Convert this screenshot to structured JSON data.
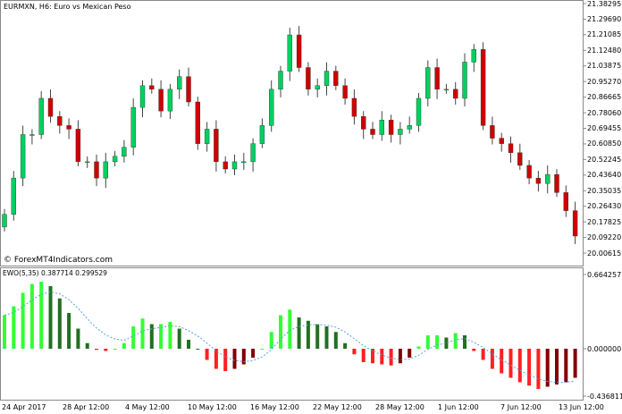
{
  "header": {
    "title": "EURMXN, H6:  Euro vs Mexican Peso",
    "watermark": "© ForexMT4Indicators.com"
  },
  "colors": {
    "bull": "#00d060",
    "bear": "#d00000",
    "hist_up": "#33ff33",
    "hist_down": "#207020",
    "hist_neg_down": "#ff2020",
    "hist_neg_up": "#800000",
    "signal": "#5aa0e0"
  },
  "chart_data": [
    {
      "type": "candlestick",
      "title": "EURMXN, H6:  Euro vs Mexican Peso",
      "ylim": [
        20.00615,
        21.38295
      ],
      "yticks": [
        "21.38295",
        "21.29690",
        "21.21085",
        "21.12480",
        "21.03875",
        "20.95270",
        "20.86665",
        "20.78060",
        "20.69455",
        "20.60850",
        "20.52245",
        "20.43640",
        "20.35035",
        "20.26430",
        "20.17825",
        "20.09220",
        "20.00615"
      ],
      "xticks": [
        "24 Apr 2017",
        "28 Apr 12:00",
        "4 May 12:00",
        "10 May 12:00",
        "16 May 12:00",
        "22 May 12:00",
        "28 May 12:00",
        "1 Jun 12:00",
        "7 Jun 12:00",
        "13 Jun 12:00"
      ],
      "first_open": 20.15,
      "closes": [
        20.22,
        20.42,
        20.66,
        20.66,
        20.86,
        20.76,
        20.71,
        20.69,
        20.51,
        20.51,
        20.42,
        20.51,
        20.54,
        20.59,
        20.81,
        20.93,
        20.91,
        20.79,
        20.91,
        20.98,
        20.84,
        20.61,
        20.69,
        20.51,
        20.47,
        20.51,
        20.51,
        20.61,
        20.71,
        20.91,
        21.01,
        21.21,
        21.03,
        20.91,
        20.93,
        21.01,
        20.93,
        20.86,
        20.76,
        20.69,
        20.66,
        20.74,
        20.66,
        20.69,
        20.71,
        20.86,
        21.03,
        20.91,
        20.91,
        20.86,
        21.06,
        21.13,
        20.71,
        20.64,
        20.61,
        20.56,
        20.49,
        20.42,
        20.39,
        20.44,
        20.34,
        20.24,
        20.1
      ]
    },
    {
      "type": "bar",
      "title": "EWO(5,35) 0.387714 0.299529",
      "ylim": [
        -0.436811,
        0.664257
      ],
      "yticks": [
        "0.664257",
        "0.000000",
        "-0.436811"
      ],
      "values": [
        0.3,
        0.38,
        0.5,
        0.58,
        0.6,
        0.56,
        0.45,
        0.32,
        0.18,
        0.05,
        -0.01,
        -0.02,
        0.0,
        0.05,
        0.2,
        0.27,
        0.22,
        0.22,
        0.24,
        0.18,
        0.08,
        0.0,
        -0.1,
        -0.18,
        -0.2,
        -0.18,
        -0.14,
        -0.08,
        0.0,
        0.15,
        0.3,
        0.35,
        0.28,
        0.25,
        0.22,
        0.2,
        0.15,
        0.05,
        -0.05,
        -0.12,
        -0.13,
        -0.14,
        -0.15,
        -0.13,
        -0.08,
        0.02,
        0.12,
        0.12,
        0.1,
        0.14,
        0.12,
        -0.02,
        -0.1,
        -0.18,
        -0.22,
        -0.26,
        -0.3,
        -0.33,
        -0.36,
        -0.34,
        -0.32,
        -0.3,
        -0.26
      ]
    }
  ]
}
